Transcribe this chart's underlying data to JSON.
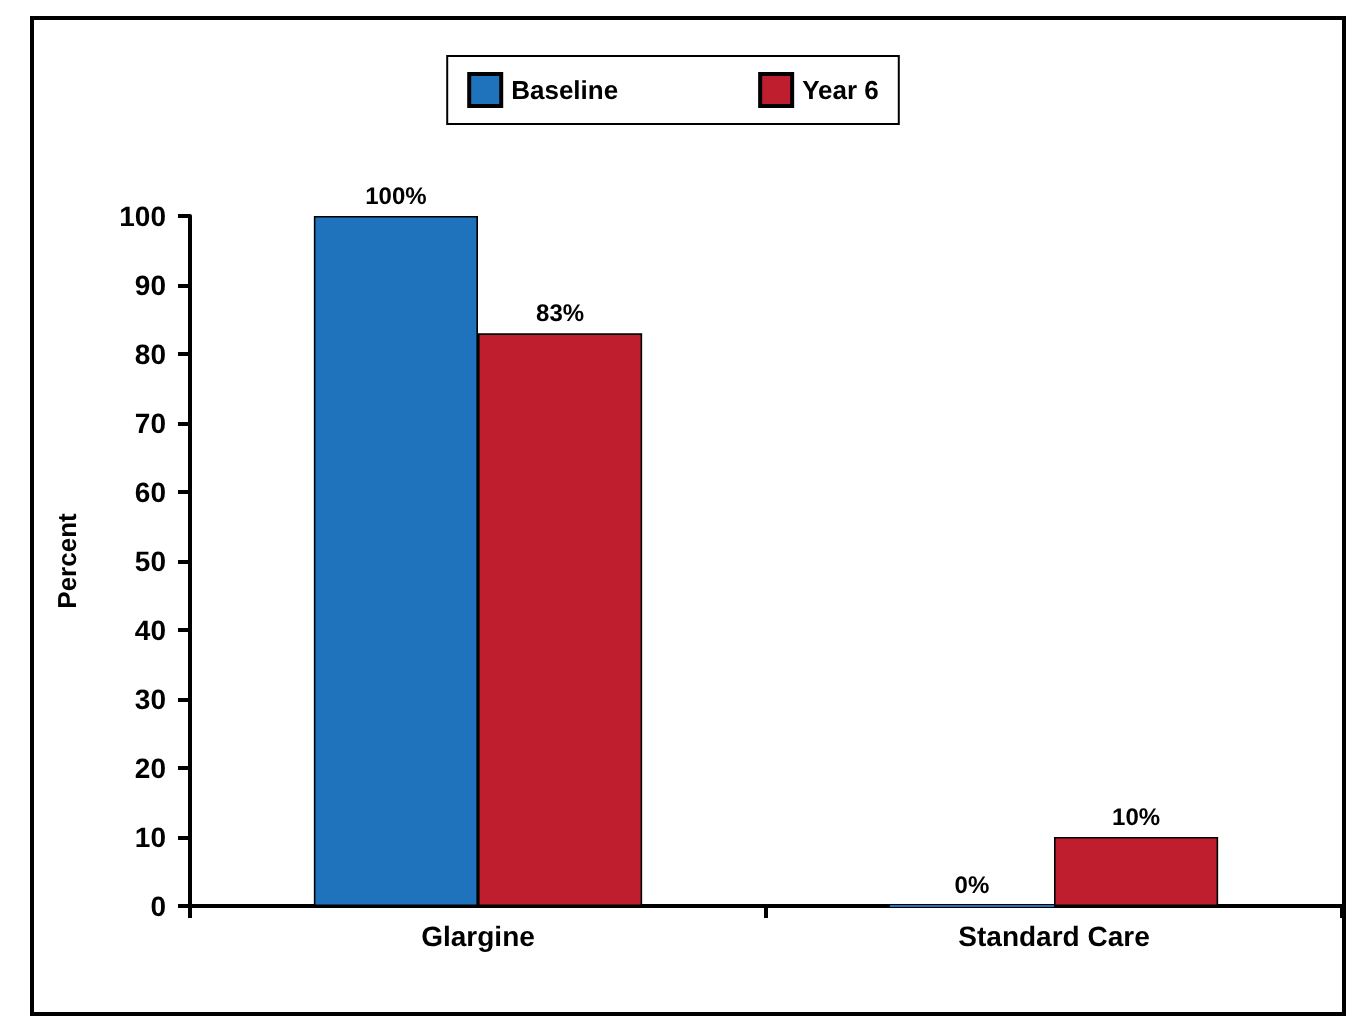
{
  "chart_data": {
    "type": "bar",
    "ylabel": "Percent",
    "categories": [
      "Glargine",
      "Standard Care"
    ],
    "series": [
      {
        "name": "Baseline",
        "color": "#1f73bc",
        "values": [
          100,
          0
        ],
        "value_labels": [
          "100%",
          "0%"
        ]
      },
      {
        "name": "Year 6",
        "color": "#be1e2d",
        "values": [
          83,
          10
        ],
        "value_labels": [
          "83%",
          "10%"
        ]
      }
    ],
    "ylim": [
      0,
      100
    ],
    "yticks": [
      0,
      10,
      20,
      30,
      40,
      50,
      60,
      70,
      80,
      90,
      100
    ],
    "grid": false,
    "legend": "top"
  }
}
